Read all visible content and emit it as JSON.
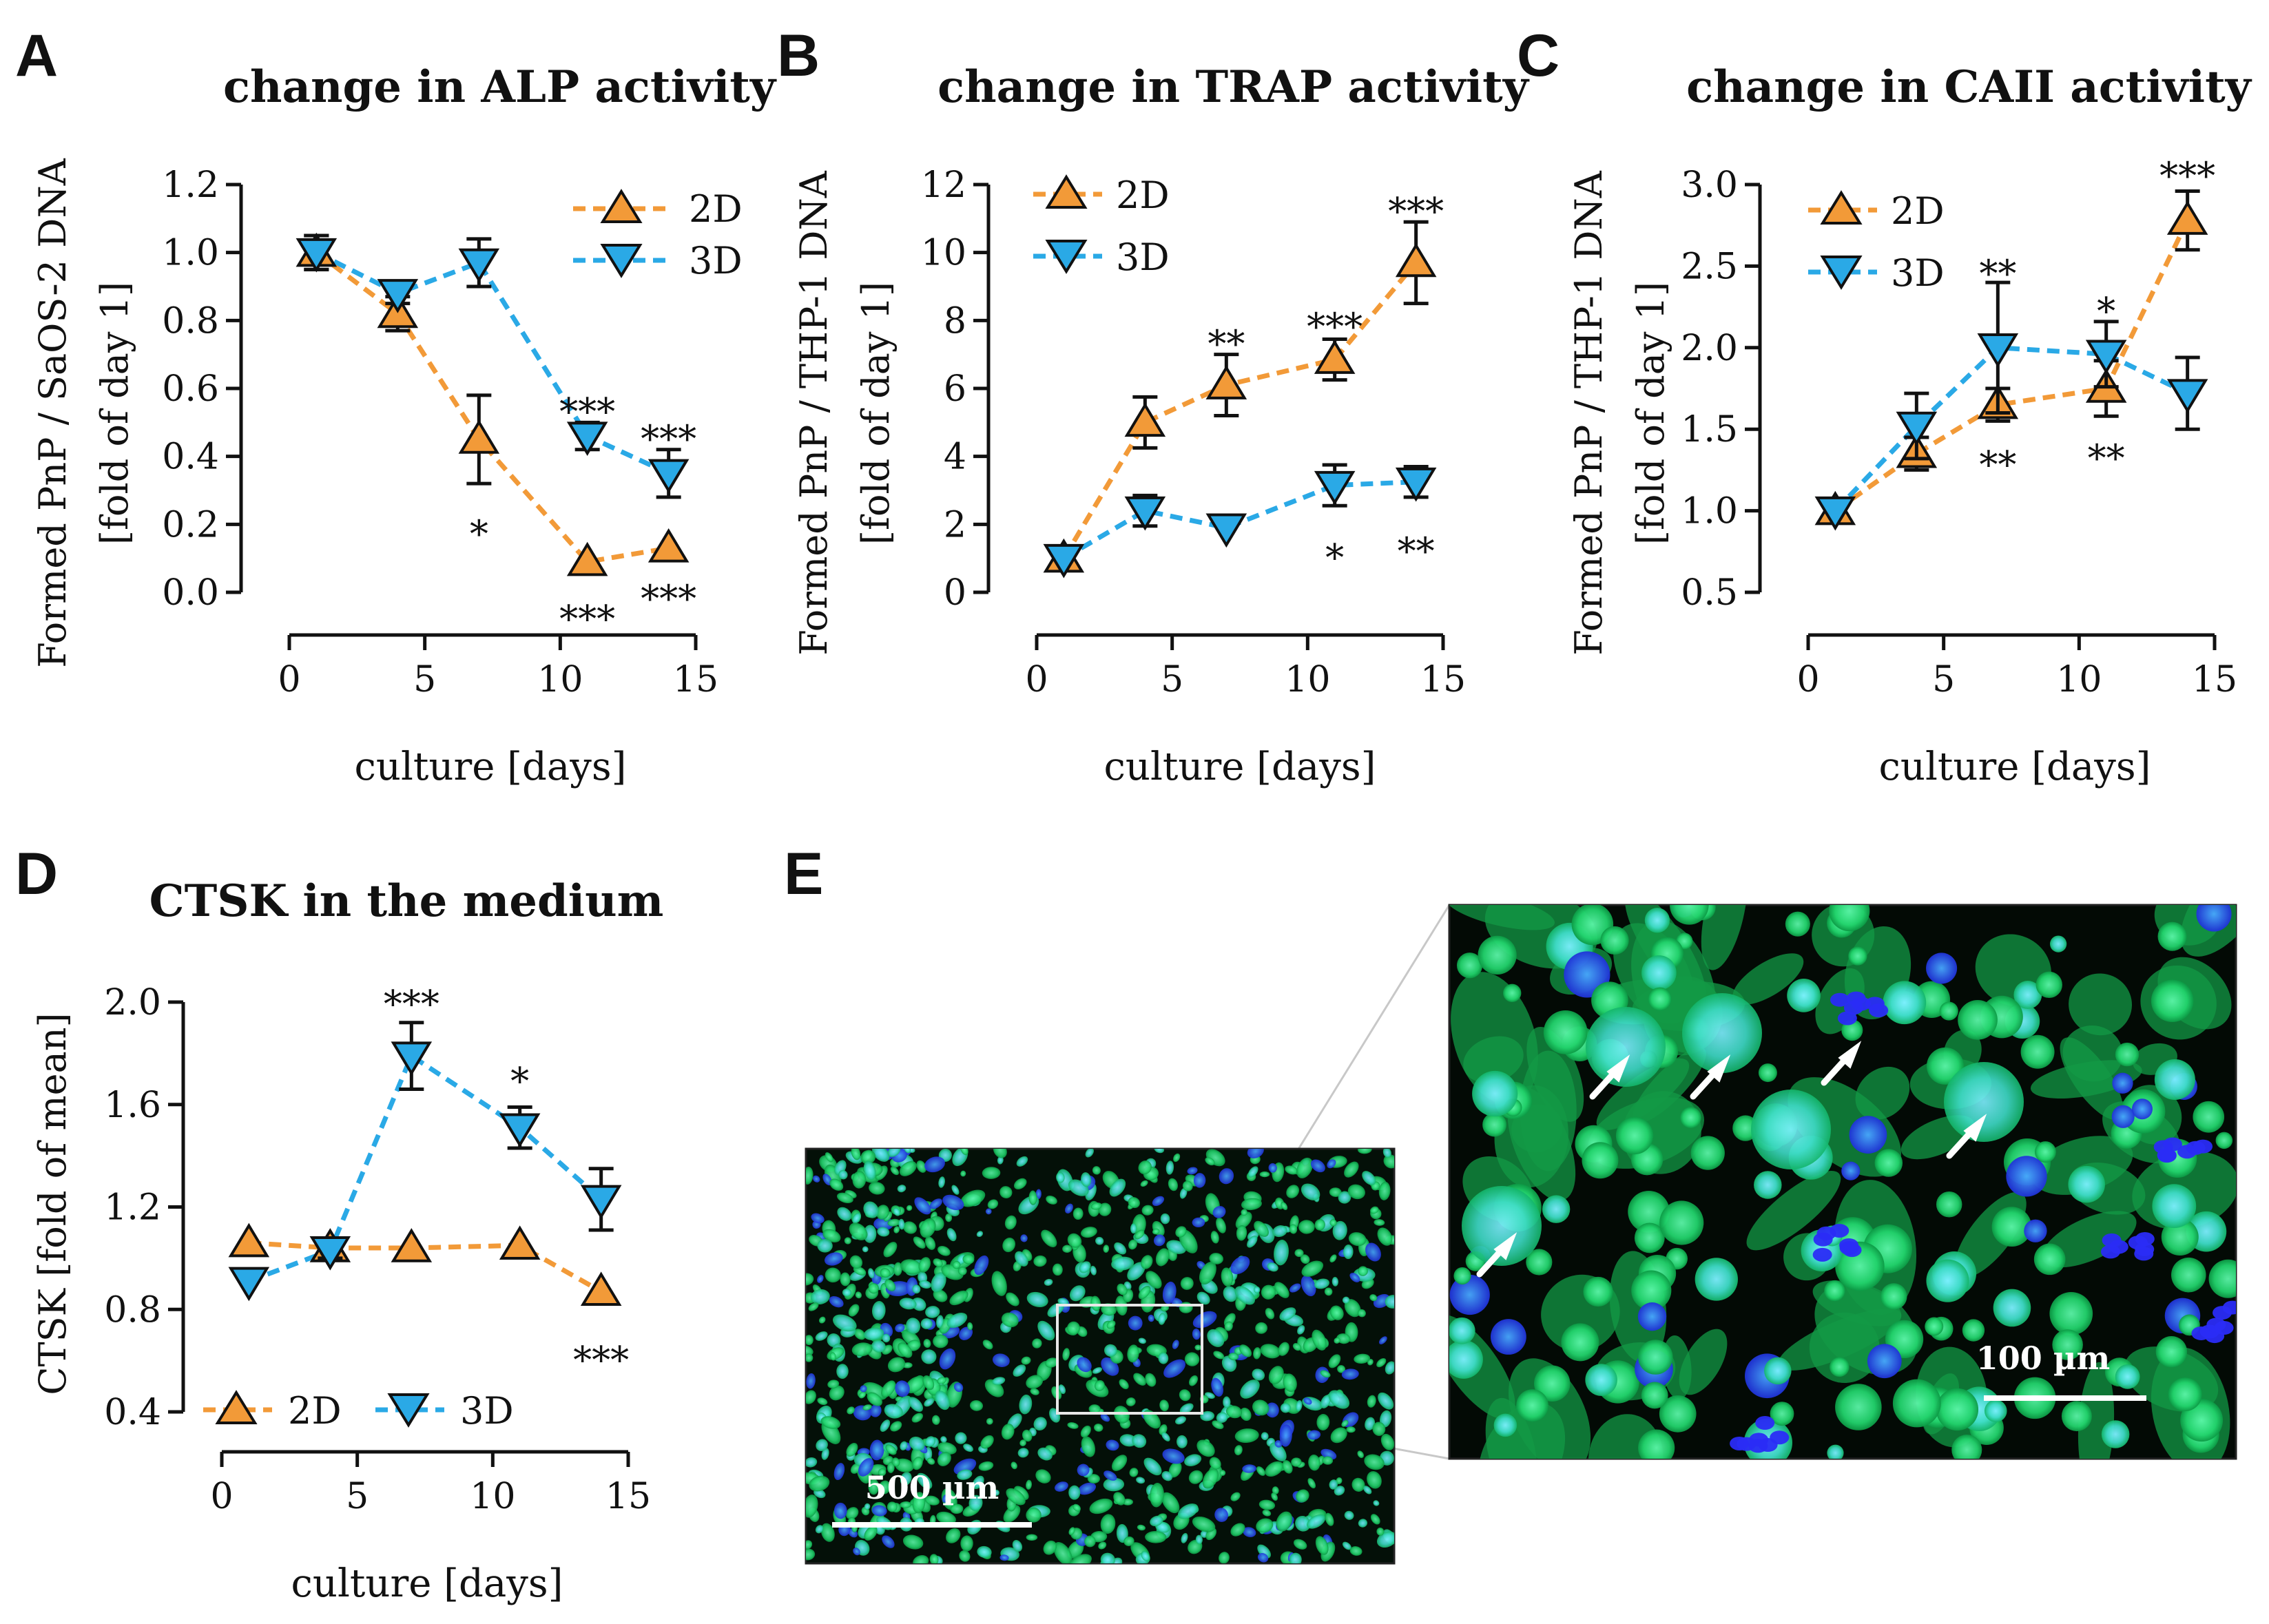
{
  "panels": {
    "A": {
      "letter": "A"
    },
    "B": {
      "letter": "B"
    },
    "C": {
      "letter": "C"
    },
    "D": {
      "letter": "D"
    },
    "E": {
      "letter": "E",
      "scalebar_small": "500 µm",
      "scalebar_large": "100 µm",
      "fluorescence_colors": {
        "actin": "#1fd36a",
        "nuclei": "#2a3cf0",
        "background": "#030a05"
      }
    }
  },
  "colors": {
    "series_2d": "#f29a38",
    "series_3d": "#2aa9e6",
    "axis": "#111111"
  },
  "chart_data": [
    {
      "id": "A",
      "type": "line",
      "title": "change in ALP activity",
      "ylabel_line1": "Formed PnP / SaOS-2 DNA",
      "ylabel_line2": "[fold of day 1]",
      "xlabel": "culture [days]",
      "xlim": [
        0,
        15
      ],
      "ylim": [
        0,
        1.2
      ],
      "xticks": [
        0,
        5,
        10,
        15
      ],
      "yticks": [
        0,
        0.2,
        0.4,
        0.6,
        0.8,
        1.0,
        1.2
      ],
      "ytick_labels": [
        "0.0",
        "0.2",
        "0.4",
        "0.6",
        "0.8",
        "1.0",
        "1.2"
      ],
      "legend_position": "top-right",
      "series": [
        {
          "name": "2D",
          "marker": "triangle-up",
          "x": [
            1,
            4,
            7,
            11,
            14
          ],
          "y": [
            1.0,
            0.82,
            0.45,
            0.09,
            0.13
          ],
          "err": [
            0.05,
            0.05,
            0.13,
            0.0,
            0.0
          ]
        },
        {
          "name": "3D",
          "marker": "triangle-down",
          "x": [
            1,
            4,
            7,
            11,
            14
          ],
          "y": [
            1.0,
            0.88,
            0.97,
            0.46,
            0.35
          ],
          "err": [
            0.05,
            0.03,
            0.07,
            0.04,
            0.07
          ]
        }
      ],
      "annotations": [
        {
          "x": 7,
          "y": 0.17,
          "text": "*"
        },
        {
          "x": 11,
          "y": -0.08,
          "text": "***"
        },
        {
          "x": 14,
          "y": -0.02,
          "text": "***"
        },
        {
          "x": 11,
          "y": 0.53,
          "text": "***"
        },
        {
          "x": 14,
          "y": 0.45,
          "text": "***"
        }
      ]
    },
    {
      "id": "B",
      "type": "line",
      "title": "change in TRAP activity",
      "ylabel_line1": "Formed PnP / THP-1 DNA",
      "ylabel_line2": "[fold of day 1]",
      "xlabel": "culture [days]",
      "xlim": [
        0,
        15
      ],
      "ylim": [
        0,
        12
      ],
      "xticks": [
        0,
        5,
        10,
        15
      ],
      "yticks": [
        0,
        2,
        4,
        6,
        8,
        10,
        12
      ],
      "ytick_labels": [
        "0",
        "2",
        "4",
        "6",
        "8",
        "10",
        "12"
      ],
      "legend_position": "top-left",
      "series": [
        {
          "name": "2D",
          "marker": "triangle-up",
          "x": [
            1,
            4,
            7,
            11,
            14
          ],
          "y": [
            1.0,
            5.0,
            6.1,
            6.85,
            9.7
          ],
          "err": [
            0.0,
            0.75,
            0.9,
            0.6,
            1.2
          ]
        },
        {
          "name": "3D",
          "marker": "triangle-down",
          "x": [
            1,
            4,
            7,
            11,
            14
          ],
          "y": [
            1.0,
            2.4,
            1.9,
            3.15,
            3.25
          ],
          "err": [
            0.0,
            0.45,
            0.0,
            0.6,
            0.45
          ]
        }
      ],
      "annotations": [
        {
          "x": 7,
          "y": 7.3,
          "text": "**"
        },
        {
          "x": 11,
          "y": 7.8,
          "text": "***"
        },
        {
          "x": 14,
          "y": 11.2,
          "text": "***"
        },
        {
          "x": 11,
          "y": 1.0,
          "text": "*"
        },
        {
          "x": 14,
          "y": 1.2,
          "text": "**"
        }
      ]
    },
    {
      "id": "C",
      "type": "line",
      "title": "change in CAII activity",
      "ylabel_line1": "Formed PnP / THP-1 DNA",
      "ylabel_line2": "[fold of day 1]",
      "xlabel": "culture [days]",
      "xlim": [
        0,
        15
      ],
      "ylim": [
        0.5,
        3.0
      ],
      "xticks": [
        0,
        5,
        10,
        15
      ],
      "yticks": [
        0.5,
        1.0,
        1.5,
        2.0,
        2.5,
        3.0
      ],
      "ytick_labels": [
        "0.5",
        "1.0",
        "1.5",
        "2.0",
        "2.5",
        "3.0"
      ],
      "legend_position": "top-left",
      "series": [
        {
          "name": "2D",
          "marker": "triangle-up",
          "x": [
            1,
            4,
            7,
            11,
            14
          ],
          "y": [
            1.0,
            1.35,
            1.65,
            1.75,
            2.78
          ],
          "err": [
            0.0,
            0.1,
            0.1,
            0.17,
            0.18
          ]
        },
        {
          "name": "3D",
          "marker": "triangle-down",
          "x": [
            1,
            4,
            7,
            11,
            14
          ],
          "y": [
            1.0,
            1.52,
            2.0,
            1.96,
            1.72
          ],
          "err": [
            0.0,
            0.2,
            0.4,
            0.2,
            0.22
          ]
        }
      ],
      "annotations": [
        {
          "x": 7,
          "y": 2.45,
          "text": "**"
        },
        {
          "x": 11,
          "y": 2.22,
          "text": "*"
        },
        {
          "x": 14,
          "y": 3.05,
          "text": "***"
        },
        {
          "x": 7,
          "y": 1.28,
          "text": "**"
        },
        {
          "x": 11,
          "y": 1.32,
          "text": "**"
        }
      ]
    },
    {
      "id": "D",
      "type": "line",
      "title": "CTSK in the medium",
      "ylabel_line1": "CTSK [fold of mean]",
      "xlabel": "culture [days]",
      "xlim": [
        0,
        15
      ],
      "ylim": [
        0.4,
        2.0
      ],
      "xticks": [
        0,
        5,
        10,
        15
      ],
      "yticks": [
        0.4,
        0.8,
        1.2,
        1.6,
        2.0
      ],
      "ytick_labels": [
        "0.4",
        "0.8",
        "1.2",
        "1.6",
        "2.0"
      ],
      "legend_position": "bottom-left",
      "series": [
        {
          "name": "2D",
          "marker": "triangle-up",
          "x": [
            1,
            4,
            7,
            11,
            14
          ],
          "y": [
            1.06,
            1.04,
            1.04,
            1.05,
            0.87
          ],
          "err": [
            0.0,
            0.0,
            0.0,
            0.0,
            0.0
          ]
        },
        {
          "name": "3D",
          "marker": "triangle-down",
          "x": [
            1,
            4,
            7,
            11,
            14
          ],
          "y": [
            0.91,
            1.03,
            1.79,
            1.51,
            1.23
          ],
          "err": [
            0.0,
            0.03,
            0.13,
            0.08,
            0.12
          ]
        }
      ],
      "annotations": [
        {
          "x": 7,
          "y": 1.99,
          "text": "***"
        },
        {
          "x": 11,
          "y": 1.69,
          "text": "*"
        },
        {
          "x": 14,
          "y": 0.6,
          "text": "***"
        }
      ]
    }
  ]
}
